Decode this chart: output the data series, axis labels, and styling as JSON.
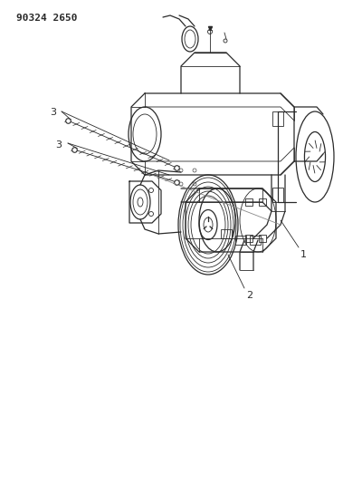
{
  "title": "90324 2650",
  "bg_color": "#ffffff",
  "line_color": "#2a2a2a",
  "label_fontsize": 7,
  "fig_width": 4.0,
  "fig_height": 5.33,
  "dpi": 100
}
